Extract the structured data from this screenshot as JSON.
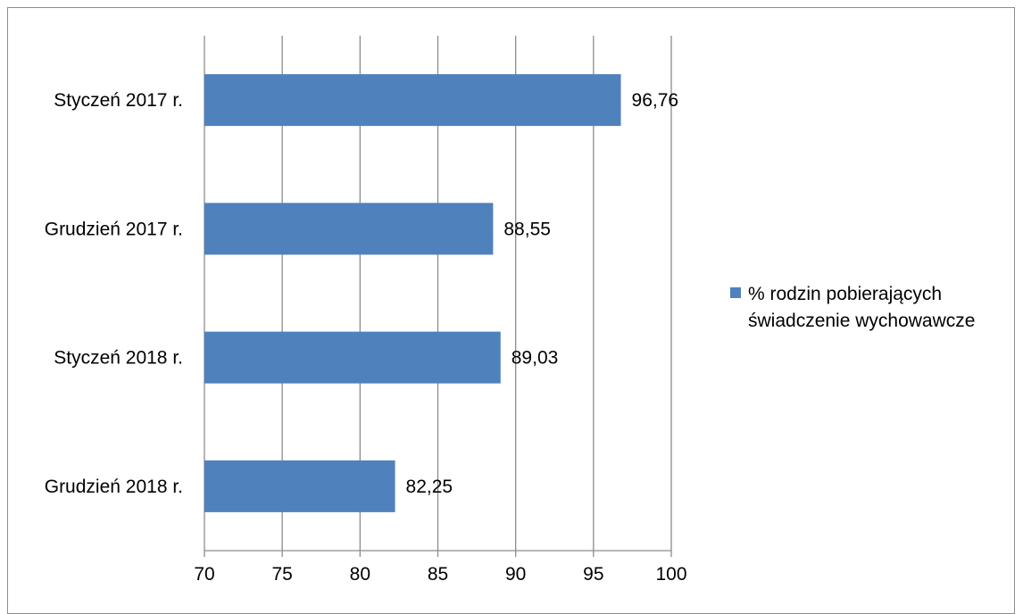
{
  "chart_data": {
    "type": "bar",
    "orientation": "horizontal",
    "categories": [
      "Styczeń 2017 r.",
      "Grudzień 2017 r.",
      "Styczeń 2018 r.",
      "Grudzień 2018 r."
    ],
    "series": [
      {
        "name": "% rodzin pobierających świadczenie wychowawcze",
        "values": [
          96.76,
          88.55,
          89.03,
          82.25
        ],
        "data_labels": [
          "96,76",
          "88,55",
          "89,03",
          "82,25"
        ],
        "color": "#4f81bd"
      }
    ],
    "xlim": [
      70,
      100
    ],
    "x_ticks": [
      70,
      75,
      80,
      85,
      90,
      95,
      100
    ],
    "x_tick_labels": [
      "70",
      "75",
      "80",
      "85",
      "90",
      "95",
      "100"
    ],
    "grid": true,
    "legend": {
      "placement": "right",
      "lines": [
        "% rodzin pobierających",
        "świadczenie wychowawcze"
      ]
    },
    "title": "",
    "xlabel": "",
    "ylabel": ""
  }
}
